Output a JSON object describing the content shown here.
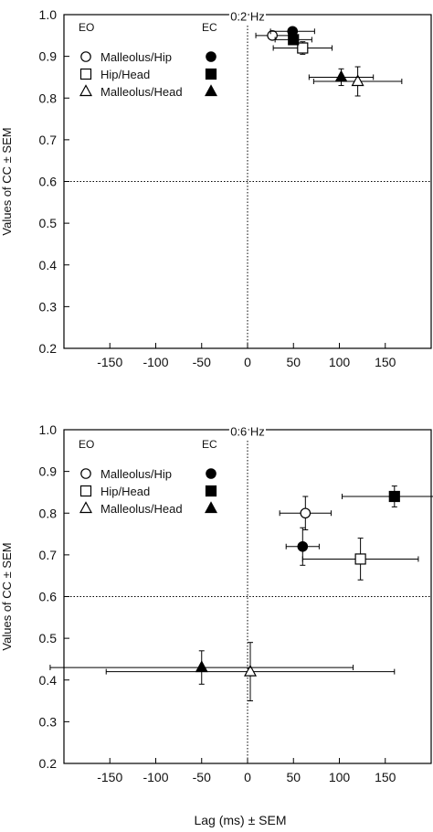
{
  "y_axis_label": "Values of CC ± SEM",
  "x_axis_label": "Lag (ms) ± SEM",
  "legend": {
    "eo_header": "EO",
    "ec_header": "EC",
    "entries": [
      "Malleolus/Hip",
      "Hip/Head",
      "Malleolus/Head"
    ],
    "eo_markers": [
      "open-circle-icon",
      "open-square-icon",
      "open-triangle-icon"
    ],
    "ec_markers": [
      "filled-circle-icon",
      "filled-square-icon",
      "filled-triangle-icon"
    ]
  },
  "chart_data": [
    {
      "type": "scatter",
      "title": "0.2 Hz",
      "xlim": [
        -200,
        200
      ],
      "ylim": [
        0.2,
        1.0
      ],
      "xticks": [
        -150,
        -100,
        -50,
        0,
        50,
        100,
        150
      ],
      "yticks": [
        0.2,
        0.3,
        0.4,
        0.5,
        0.6,
        0.7,
        0.8,
        0.9,
        1.0
      ],
      "xlabel": "",
      "ylabel": "Values of CC ± SEM",
      "reference_lines": {
        "x": 0,
        "y": 0.6
      },
      "series": [
        {
          "name": "Malleolus/Hip",
          "condition": "EO",
          "marker": "circle",
          "filled": false,
          "x": 27,
          "y": 0.95,
          "x_err": 18,
          "y_err": 0.008
        },
        {
          "name": "Malleolus/Hip",
          "condition": "EC",
          "marker": "circle",
          "filled": true,
          "x": 49,
          "y": 0.96,
          "x_err": 24,
          "y_err": 0.008
        },
        {
          "name": "Hip/Head",
          "condition": "EO",
          "marker": "square",
          "filled": false,
          "x": 60,
          "y": 0.92,
          "x_err": 32,
          "y_err": 0.015
        },
        {
          "name": "Hip/Head",
          "condition": "EC",
          "marker": "square",
          "filled": true,
          "x": 50,
          "y": 0.94,
          "x_err": 20,
          "y_err": 0.01
        },
        {
          "name": "Malleolus/Head",
          "condition": "EO",
          "marker": "triangle",
          "filled": false,
          "x": 120,
          "y": 0.84,
          "x_err": 48,
          "y_err": 0.035
        },
        {
          "name": "Malleolus/Head",
          "condition": "EC",
          "marker": "triangle",
          "filled": true,
          "x": 102,
          "y": 0.85,
          "x_err": 35,
          "y_err": 0.02
        }
      ]
    },
    {
      "type": "scatter",
      "title": "0.6 Hz",
      "xlim": [
        -200,
        200
      ],
      "ylim": [
        0.2,
        1.0
      ],
      "xticks": [
        -150,
        -100,
        -50,
        0,
        50,
        100,
        150
      ],
      "yticks": [
        0.2,
        0.3,
        0.4,
        0.5,
        0.6,
        0.7,
        0.8,
        0.9,
        1.0
      ],
      "xlabel": "Lag (ms) ± SEM",
      "ylabel": "Values of CC ± SEM",
      "reference_lines": {
        "x": 0,
        "y": 0.6
      },
      "series": [
        {
          "name": "Malleolus/Hip",
          "condition": "EO",
          "marker": "circle",
          "filled": false,
          "x": 63,
          "y": 0.8,
          "x_err": 28,
          "y_err": 0.04
        },
        {
          "name": "Malleolus/Hip",
          "condition": "EC",
          "marker": "circle",
          "filled": true,
          "x": 60,
          "y": 0.72,
          "x_err": 18,
          "y_err": 0.045
        },
        {
          "name": "Hip/Head",
          "condition": "EO",
          "marker": "square",
          "filled": false,
          "x": 123,
          "y": 0.69,
          "x_err": 63,
          "y_err": 0.05
        },
        {
          "name": "Hip/Head",
          "condition": "EC",
          "marker": "square",
          "filled": true,
          "x": 160,
          "y": 0.84,
          "x_err": 57,
          "y_err": 0.025
        },
        {
          "name": "Malleolus/Head",
          "condition": "EO",
          "marker": "triangle",
          "filled": false,
          "x": 3,
          "y": 0.42,
          "x_err": 157,
          "y_err": 0.07
        },
        {
          "name": "Malleolus/Head",
          "condition": "EC",
          "marker": "triangle",
          "filled": true,
          "x": -50,
          "y": 0.43,
          "x_err": 165,
          "y_err": 0.04
        }
      ]
    }
  ]
}
